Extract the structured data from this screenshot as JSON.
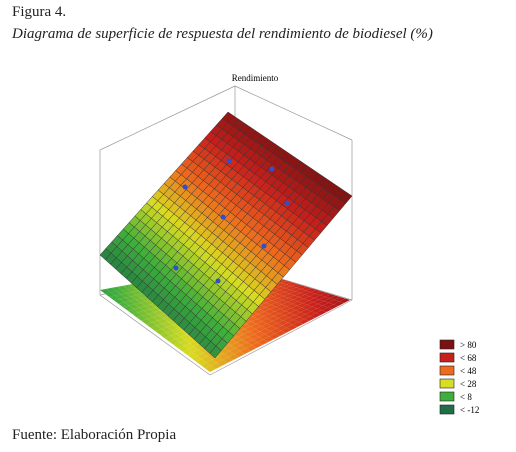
{
  "chart_data": {
    "type": "surface",
    "figure_label": "Figura 4.",
    "title": "Diagrama de superficie de respuesta del rendimiento de biodiesel (%)",
    "subtitle": "Rendimiento",
    "legend": [
      {
        "label": "> 80",
        "color": "#7a1212"
      },
      {
        "label": "< 68",
        "color": "#c8201c"
      },
      {
        "label": "< 48",
        "color": "#ee6a1e"
      },
      {
        "label": "< 28",
        "color": "#d8dc22"
      },
      {
        "label": "< 8",
        "color": "#3fae3c"
      },
      {
        "label": "< -12",
        "color": "#1f6e46"
      }
    ],
    "source": "Fuente: Elaboración Propia"
  }
}
